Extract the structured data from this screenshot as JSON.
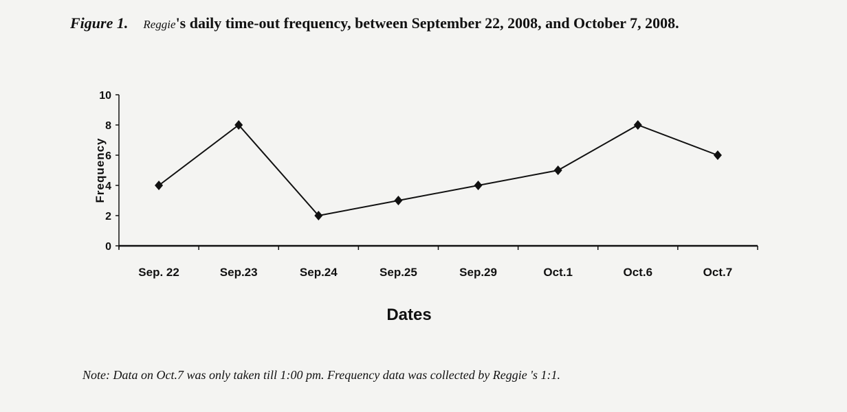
{
  "caption": {
    "figure_label": "Figure 1.",
    "subject": "Reggie",
    "text": "'s daily time-out frequency, between September 22, 2008, and October 7, 2008."
  },
  "note": "Note: Data on Oct.7 was only taken till 1:00 pm. Frequency data was collected by  Reggie 's 1:1.",
  "chart_data": {
    "type": "line",
    "title": "",
    "xlabel": "Dates",
    "ylabel": "Frequency",
    "categories": [
      "Sep. 22",
      "Sep.23",
      "Sep.24",
      "Sep.25",
      "Sep.29",
      "Oct.1",
      "Oct.6",
      "Oct.7"
    ],
    "values": [
      4,
      8,
      2,
      3,
      4,
      5,
      8,
      6
    ],
    "ylim": [
      0,
      10
    ],
    "yticks": [
      0,
      2,
      4,
      6,
      8,
      10
    ],
    "grid": false,
    "marker": "diamond",
    "color": "#111111"
  }
}
